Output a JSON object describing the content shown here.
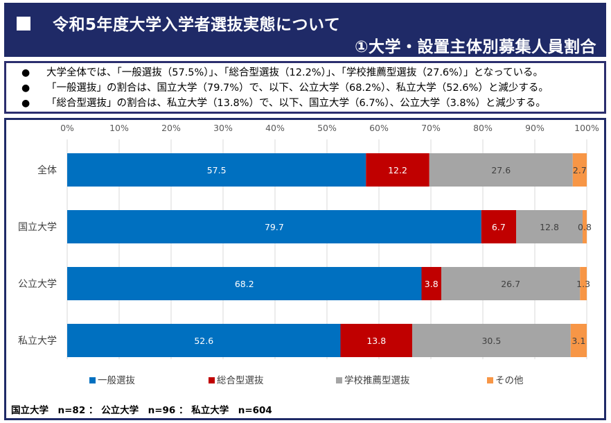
{
  "header": {
    "title_line1": "令和5年度大学入学者選抜実態について",
    "title_line2": "①大学・設置主体別募集人員割合"
  },
  "summary": {
    "items": [
      "大学全体では、「一般選抜（57.5%）」、「総合型選抜（12.2%）」、「学校推薦型選抜（27.6%）」となっている。",
      "「一般選抜」の割合は、国立大学（79.7%）で、以下、公立大学（68.2%）、私立大学（52.6%）と減少する。",
      "「総合型選抜」の割合は、私立大学（13.8%）で、以下、国立大学（6.7%）、公立大学（3.8%）と減少する。"
    ]
  },
  "chart_data": {
    "type": "bar",
    "orientation": "horizontal",
    "stacked": true,
    "title": "",
    "categories": [
      "全体",
      "国立大学",
      "公立大学",
      "私立大学"
    ],
    "series": [
      {
        "name": "一般選抜",
        "color": "#0070c0",
        "values": [
          57.5,
          79.7,
          68.2,
          52.6
        ]
      },
      {
        "name": "総合型選抜",
        "color": "#c00000",
        "values": [
          12.2,
          6.7,
          3.8,
          13.8
        ]
      },
      {
        "name": "学校推薦型選抜",
        "color": "#a5a5a5",
        "values": [
          27.6,
          12.8,
          26.7,
          30.5
        ]
      },
      {
        "name": "その他",
        "color": "#f79646",
        "values": [
          2.7,
          0.8,
          1.3,
          3.1
        ]
      }
    ],
    "x_ticks": [
      "0%",
      "10%",
      "20%",
      "30%",
      "40%",
      "50%",
      "60%",
      "70%",
      "80%",
      "90%",
      "100%"
    ],
    "xlim": [
      0,
      100
    ],
    "grid": true,
    "legend_position": "bottom"
  },
  "footer": {
    "note": "国立大学　n=82 ： 公立大学　n=96 ： 私立大学　n=604"
  }
}
